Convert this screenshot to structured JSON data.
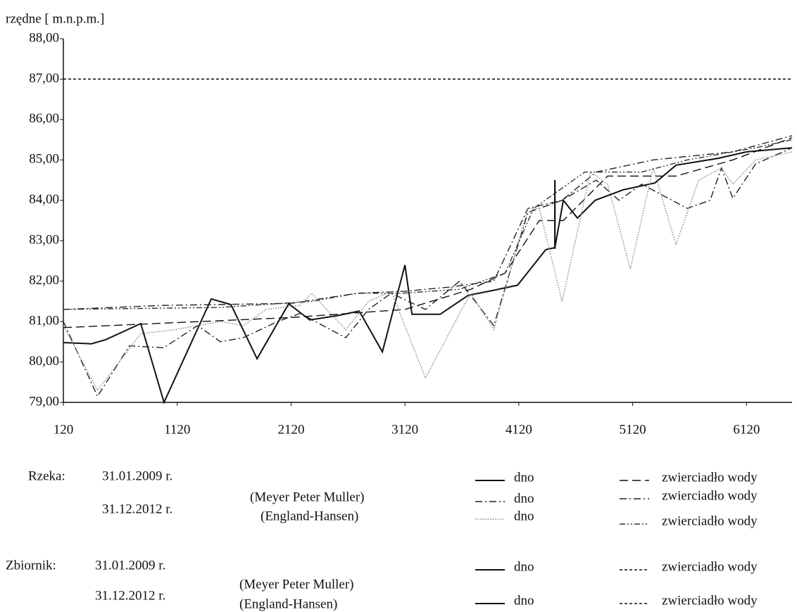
{
  "chart_data": {
    "type": "line",
    "ylabel": "rzędne [ m.n.p.m.]",
    "xlim": [
      120,
      6520
    ],
    "xticks": [
      120,
      1120,
      2120,
      3120,
      4120,
      5120,
      6120
    ],
    "ylim": [
      79,
      88
    ],
    "yticks": [
      {
        "value": 79,
        "label": "79,00"
      },
      {
        "value": 80,
        "label": "80,00"
      },
      {
        "value": 81,
        "label": "81,00"
      },
      {
        "value": 82,
        "label": "82,00"
      },
      {
        "value": 83,
        "label": "83,00"
      },
      {
        "value": 84,
        "label": "84,00"
      },
      {
        "value": 85,
        "label": "85,00"
      },
      {
        "value": 86,
        "label": "86,00"
      },
      {
        "value": 87,
        "label": "87,00"
      },
      {
        "value": 88,
        "label": "88,00"
      }
    ],
    "series": [
      {
        "name": "dno",
        "color": "#111",
        "dash": "solid",
        "x": [
          120,
          367,
          491,
          800,
          1004,
          1419,
          1592,
          1821,
          2099,
          2285,
          2532,
          2718,
          2922,
          3120,
          3182,
          3429,
          3676,
          3893,
          4109,
          4357,
          4437,
          4511,
          4635,
          4790,
          5037,
          5315,
          5501,
          5872,
          6120,
          6520
        ],
        "values": [
          80.48,
          80.45,
          80.55,
          80.95,
          79.0,
          81.56,
          81.42,
          80.08,
          81.44,
          81.04,
          81.15,
          81.26,
          80.25,
          82.4,
          81.18,
          81.18,
          81.65,
          81.77,
          81.9,
          82.78,
          82.83,
          84.0,
          83.56,
          84.0,
          84.26,
          84.43,
          84.87,
          85.04,
          85.2,
          85.3
        ]
      },
      {
        "name": "zwierciadło wody",
        "color": "#111",
        "dash": "longdash",
        "x": [
          120,
          2120,
          3120,
          3700,
          4000,
          4300,
          4511,
          4900,
          5500,
          6000,
          6520
        ],
        "values": [
          80.85,
          81.1,
          81.3,
          81.8,
          82.2,
          83.5,
          83.5,
          84.6,
          84.6,
          85.0,
          85.55
        ]
      },
      {
        "name": "dno",
        "color": "#222",
        "dash": "dashdot",
        "x": [
          120,
          420,
          700,
          1000,
          1300,
          1500,
          1700,
          2000,
          2200,
          2600,
          2800,
          3000,
          3300,
          3600,
          3900,
          4200,
          4500,
          4800,
          5000,
          5200,
          5600,
          5800,
          5900,
          6000,
          6200,
          6520
        ],
        "values": [
          81.0,
          79.15,
          80.4,
          80.35,
          80.9,
          80.5,
          80.6,
          81.0,
          81.2,
          80.6,
          81.3,
          81.7,
          81.3,
          82.0,
          80.9,
          83.7,
          84.0,
          84.5,
          84.0,
          84.4,
          83.8,
          84.0,
          84.8,
          84.05,
          84.9,
          85.3
        ]
      },
      {
        "name": "zwierciadło wody",
        "color": "#222",
        "dash": "dashdot",
        "x": [
          120,
          1000,
          2120,
          2700,
          3120,
          3500,
          3900,
          4200,
          4500,
          4800,
          5300,
          6000,
          6520
        ],
        "values": [
          81.3,
          81.4,
          81.45,
          81.7,
          81.75,
          81.85,
          82.0,
          83.8,
          84.0,
          84.7,
          85.0,
          85.2,
          85.6
        ]
      },
      {
        "name": "dno",
        "color": "#888",
        "dash": "dotted",
        "x": [
          120,
          420,
          800,
          1100,
          1500,
          1700,
          1900,
          2200,
          2300,
          2600,
          2800,
          3000,
          3300,
          3600,
          3700,
          3900,
          4200,
          4300,
          4500,
          4750,
          4900,
          5100,
          5300,
          5500,
          5700,
          5900,
          6000,
          6200,
          6520
        ],
        "values": [
          80.9,
          79.3,
          80.7,
          80.8,
          81.0,
          80.9,
          81.3,
          81.4,
          81.7,
          80.8,
          81.5,
          81.75,
          79.6,
          81.2,
          81.7,
          80.8,
          83.8,
          83.8,
          81.5,
          84.7,
          84.4,
          82.3,
          84.8,
          82.9,
          84.5,
          84.8,
          84.4,
          85.0,
          85.2
        ]
      },
      {
        "name": "zwierciadło wody",
        "color": "#333",
        "dash": "dashdotdot",
        "x": [
          120,
          1500,
          2300,
          2700,
          3100,
          3600,
          4000,
          4250,
          4700,
          5200,
          5600,
          6200,
          6520
        ],
        "values": [
          81.3,
          81.35,
          81.5,
          81.7,
          81.7,
          81.8,
          82.2,
          83.8,
          84.7,
          84.7,
          85.0,
          85.3,
          85.5
        ]
      },
      {
        "name": "dno",
        "color": "#111",
        "dash": "solid",
        "x": [
          4437,
          4437
        ],
        "values": [
          82.8,
          84.5
        ]
      },
      {
        "name": "zwierciadło wody",
        "color": "#111",
        "dash": "shortdash",
        "x": [
          120,
          6520
        ],
        "values": [
          87,
          87
        ]
      },
      {
        "name": "dno",
        "color": "#111",
        "dash": "solid",
        "x": [
          4437,
          4437
        ],
        "values": [
          82.8,
          84.5
        ]
      },
      {
        "name": "zwierciadło wody",
        "color": "#111",
        "dash": "shortdash",
        "x": [
          120,
          6520
        ],
        "values": [
          87,
          87
        ]
      }
    ],
    "legend": {
      "groups": [
        {
          "label": "Rzeka:",
          "dates": [
            "31.01.2009 r.",
            "31.12.2012 r."
          ],
          "methods": [
            "(Meyer Peter Muller)",
            "(England-Hansen)"
          ]
        },
        {
          "label": "Zbiornik:",
          "dates": [
            "31.01.2009 r.",
            "31.12.2012 r."
          ],
          "methods": [
            "(Meyer Peter Muller)",
            "(England-Hansen)"
          ]
        }
      ]
    }
  }
}
